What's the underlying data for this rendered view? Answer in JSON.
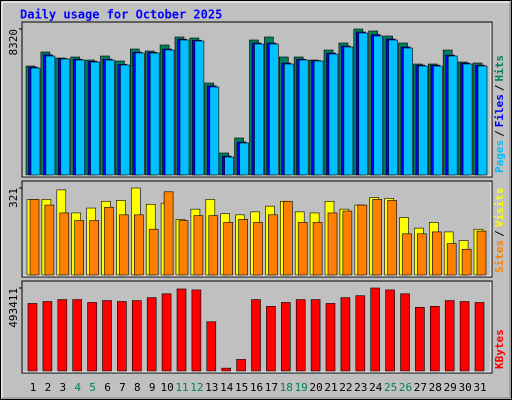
{
  "chart_data": {
    "title": "Daily usage for October 2025",
    "categories": [
      "1",
      "2",
      "3",
      "4",
      "5",
      "6",
      "7",
      "8",
      "9",
      "10",
      "11",
      "12",
      "13",
      "14",
      "15",
      "16",
      "17",
      "18",
      "19",
      "20",
      "21",
      "22",
      "23",
      "24",
      "25",
      "26",
      "27",
      "28",
      "29",
      "30",
      "31"
    ],
    "category_colors": [
      "#000000",
      "#000000",
      "#000000",
      "#00805c",
      "#00805c",
      "#000000",
      "#000000",
      "#000000",
      "#000000",
      "#000000",
      "#00805c",
      "#00805c",
      "#000000",
      "#000000",
      "#000000",
      "#000000",
      "#000000",
      "#00805c",
      "#00805c",
      "#000000",
      "#000000",
      "#000000",
      "#000000",
      "#000000",
      "#00805c",
      "#00805c",
      "#000000",
      "#000000",
      "#000000",
      "#000000",
      "#000000"
    ],
    "legend_separator": "/",
    "panels": [
      {
        "type": "bar",
        "ylim": [
          0,
          8320
        ],
        "yticks": [
          8320
        ],
        "series": [
          {
            "name": "Hits",
            "color": "#00805c",
            "values": [
              6211,
              7009,
              6667,
              6724,
              6553,
              6781,
              6496,
              7180,
              7066,
              7408,
              7864,
              7807,
              5243,
              1254,
              2108,
              7693,
              7864,
              6724,
              6724,
              6553,
              7123,
              7522,
              8320,
              8206,
              7921,
              7522,
              6325,
              6325,
              7123,
              6439,
              6382
            ]
          },
          {
            "name": "Files",
            "color": "#0000ff",
            "values": [
              6150,
              6850,
              6640,
              6600,
              6480,
              6600,
              6300,
              7000,
              6990,
              7180,
              7740,
              7680,
              5080,
              1080,
              1880,
              7520,
              7520,
              6380,
              6600,
              6520,
              6950,
              7350,
              8150,
              8000,
              7750,
              7300,
              6260,
              6260,
              6830,
              6380,
              6260
            ]
          },
          {
            "name": "Pages",
            "color": "#00c0ff",
            "values": [
              6097,
              6781,
              6610,
              6553,
              6439,
              6553,
              6268,
              6952,
              6952,
              7123,
              7693,
              7636,
              5015,
              1026,
              1824,
              7465,
              7465,
              6325,
              6553,
              6496,
              6895,
              7294,
              8092,
              7921,
              7693,
              7237,
              6211,
              6211,
              6781,
              6325,
              6211
            ]
          }
        ]
      },
      {
        "type": "bar",
        "ylim": [
          0,
          321
        ],
        "yticks": [
          321
        ],
        "series": [
          {
            "name": "Visits",
            "color": "#ffff00",
            "values": [
              279,
              279,
              314,
              229,
              247,
              272,
              275,
              321,
              261,
              265,
              205,
              243,
              279,
              226,
              222,
              233,
              254,
              272,
              233,
              229,
              272,
              243,
              258,
              286,
              282,
              212,
              173,
              194,
              159,
              127,
              169
            ]
          },
          {
            "name": "Sites",
            "color": "#ff8000",
            "values": [
              279,
              258,
              229,
              201,
              201,
              250,
              222,
              222,
              169,
              307,
              201,
              219,
              219,
              194,
              205,
              194,
              222,
              272,
              194,
              194,
              229,
              236,
              258,
              279,
              275,
              152,
              152,
              159,
              116,
              95,
              162
            ]
          }
        ]
      },
      {
        "type": "bar",
        "ylim": [
          0,
          493411
        ],
        "yticks": [
          493411
        ],
        "series": [
          {
            "name": "KBytes",
            "color": "#ff0000",
            "values": [
              401610,
              413090,
              424560,
              424560,
              407350,
              418820,
              413090,
              418820,
              436040,
              458990,
              487670,
              481930,
              292610,
              17000,
              68850,
              424560,
              384400,
              407350,
              424560,
              424560,
              401610,
              436040,
              447510,
              493411,
              481930,
              458990,
              378660,
              384400,
              418820,
              413090,
              407350
            ]
          }
        ]
      }
    ]
  }
}
